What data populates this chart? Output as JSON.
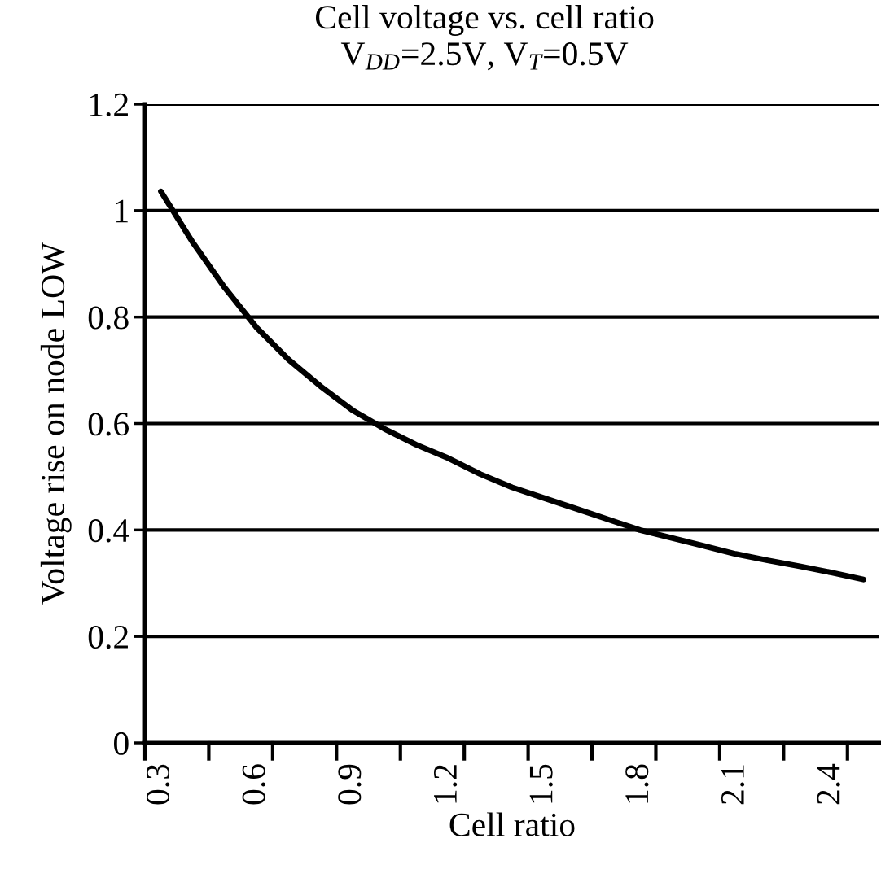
{
  "chart_data": {
    "type": "line",
    "title": "Cell voltage vs. cell ratio",
    "subtitle": "V$_{DD}$=2.5V, V$_{T}$=0.5V",
    "xlabel": "Cell ratio",
    "ylabel": "Voltage rise on node LOW",
    "categories": [
      "0.3",
      null,
      null,
      "0.6",
      null,
      null,
      "0.9",
      null,
      null,
      "1.2",
      null,
      null,
      "1.5",
      null,
      null,
      "1.8",
      null,
      null,
      "2.1",
      null,
      null,
      "2.4",
      null
    ],
    "series": [
      {
        "color": "#000000",
        "values": [
          1.036,
          0.94,
          0.855,
          0.78,
          0.72,
          0.67,
          0.625,
          0.59,
          0.56,
          0.535,
          0.505,
          0.48,
          0.46,
          0.44,
          0.42,
          0.4,
          0.385,
          0.37,
          0.355,
          0.343,
          0.332,
          0.32,
          0.307
        ]
      }
    ],
    "ylim": [
      0,
      1.2
    ],
    "yticks": [
      0,
      0.2,
      0.4,
      0.6,
      0.8,
      1,
      1.2
    ],
    "grid": "y",
    "legend": false,
    "marker": "none",
    "line_style": "solid"
  }
}
